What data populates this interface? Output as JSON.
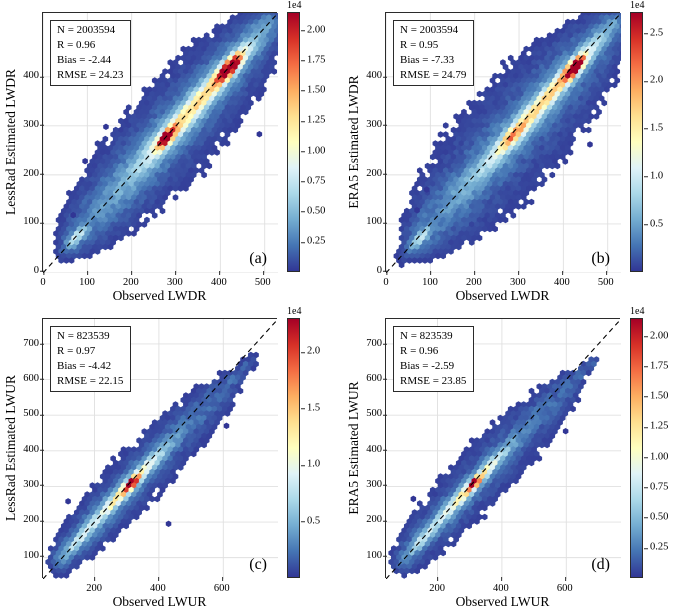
{
  "colormap": [
    "#313695",
    "#4575b4",
    "#74add1",
    "#abd9e9",
    "#e0f3f8",
    "#ffffbf",
    "#fee090",
    "#fdae61",
    "#f46d43",
    "#d73027",
    "#a50026"
  ],
  "chart_data": [
    {
      "id": "a",
      "type": "hexbin",
      "panel_label": "(a)",
      "xlabel": "Observed LWDR",
      "ylabel": "LessRad Estimated LWDR",
      "stats": {
        "n": "N = 2003594",
        "r": "R = 0.96",
        "bias": "Bias = -2.44",
        "rmse": "RMSE = 24.23"
      },
      "xlim": [
        0,
        530
      ],
      "ylim": [
        0,
        530
      ],
      "xticks": [
        0,
        100,
        200,
        300,
        400,
        500
      ],
      "yticks": [
        0,
        100,
        200,
        300,
        400
      ],
      "grid": true,
      "identity_line": true,
      "colorbar": {
        "scale": "1e4",
        "vmax": 2.15,
        "ticks": [
          {
            "v": 0.25,
            "label": "0.25"
          },
          {
            "v": 0.5,
            "label": "0.50"
          },
          {
            "v": 0.75,
            "label": "0.75"
          },
          {
            "v": 1.0,
            "label": "1.00"
          },
          {
            "v": 1.25,
            "label": "1.25"
          },
          {
            "v": 1.5,
            "label": "1.50"
          },
          {
            "v": 1.75,
            "label": "1.75"
          },
          {
            "v": 2.0,
            "label": "2.00"
          }
        ]
      },
      "density_model": {
        "t0": 62,
        "t1": 505,
        "tmid": 290,
        "thalf": 245,
        "smax": 55,
        "amp": 0.075,
        "off0": -3,
        "off1": 0,
        "cut": 0.013,
        "seed": 1,
        "ridges": [
          {
            "t": 300,
            "st": 130,
            "sp": 26,
            "a": 0.16
          },
          {
            "t": 350,
            "st": 80,
            "sp": 13,
            "a": 0.4
          },
          {
            "t": 277,
            "st": 16,
            "sp": 8,
            "a": 0.55
          },
          {
            "t": 276,
            "st": 8,
            "sp": 5,
            "a": 0.45
          },
          {
            "t": 420,
            "st": 20,
            "sp": 9,
            "a": 0.75
          },
          {
            "t": 419,
            "st": 10,
            "sp": 5.5,
            "a": 0.4
          },
          {
            "t": 75,
            "st": 14,
            "sp": 7,
            "a": 0.28
          }
        ]
      },
      "outliers": [
        [
          95,
          228
        ],
        [
          488,
          283
        ],
        [
          142,
          298
        ],
        [
          68,
          118
        ]
      ]
    },
    {
      "id": "b",
      "type": "hexbin",
      "panel_label": "(b)",
      "xlabel": "Observed LWDR",
      "ylabel": "ERA5 Estimated LWDR",
      "stats": {
        "n": "N = 2003594",
        "r": "R = 0.95",
        "bias": "Bias = -7.33",
        "rmse": "RMSE = 24.79"
      },
      "xlim": [
        0,
        530
      ],
      "ylim": [
        0,
        530
      ],
      "xticks": [
        0,
        100,
        200,
        300,
        400,
        500
      ],
      "yticks": [
        0,
        100,
        200,
        300,
        400
      ],
      "grid": true,
      "identity_line": true,
      "colorbar": {
        "scale": "1e4",
        "vmax": 2.72,
        "ticks": [
          {
            "v": 0.5,
            "label": "0.5"
          },
          {
            "v": 1.0,
            "label": "1.0"
          },
          {
            "v": 1.5,
            "label": "1.5"
          },
          {
            "v": 2.0,
            "label": "2.0"
          },
          {
            "v": 2.5,
            "label": "2.5"
          }
        ]
      },
      "density_model": {
        "t0": 60,
        "t1": 505,
        "tmid": 285,
        "thalf": 240,
        "smax": 62,
        "amp": 0.075,
        "off0": -7,
        "off1": 0,
        "cut": 0.013,
        "seed": 2,
        "ridges": [
          {
            "t": 300,
            "st": 130,
            "sp": 24,
            "a": 0.16
          },
          {
            "t": 355,
            "st": 85,
            "sp": 11,
            "a": 0.42
          },
          {
            "t": 280,
            "st": 18,
            "sp": 8,
            "a": 0.3
          },
          {
            "t": 421,
            "st": 16,
            "sp": 8,
            "a": 0.8
          },
          {
            "t": 420,
            "st": 8,
            "sp": 5,
            "a": 0.45
          },
          {
            "t": 74,
            "st": 13,
            "sp": 7,
            "a": 0.26
          }
        ]
      },
      "outliers": [
        [
          92,
          170
        ],
        [
          460,
          262
        ],
        [
          70,
          128
        ]
      ]
    },
    {
      "id": "c",
      "type": "hexbin",
      "panel_label": "(c)",
      "xlabel": "Observed LWUR",
      "ylabel": "LessRad Estimated LWUR",
      "stats": {
        "n": "N = 823539",
        "r": "R = 0.97",
        "bias": "Bias = -4.42",
        "rmse": "RMSE = 22.15"
      },
      "xlim": [
        40,
        770
      ],
      "ylim": [
        40,
        770
      ],
      "xticks": [
        200,
        400,
        600
      ],
      "yticks": [
        100,
        200,
        300,
        400,
        500,
        600,
        700
      ],
      "grid": true,
      "identity_line": true,
      "colorbar": {
        "scale": "1e4",
        "vmax": 2.3,
        "ticks": [
          {
            "v": 0.5,
            "label": "0.5"
          },
          {
            "v": 1.0,
            "label": "1.0"
          },
          {
            "v": 1.5,
            "label": "1.5"
          },
          {
            "v": 2.0,
            "label": "2.0"
          }
        ]
      },
      "density_model": {
        "t0": 95,
        "t1": 655,
        "tmid": 340,
        "thalf": 300,
        "smax": 44,
        "amp": 0.075,
        "off0": -2,
        "off1": -35,
        "cut": 0.013,
        "seed": 3,
        "ridges": [
          {
            "t": 280,
            "st": 110,
            "sp": 20,
            "a": 0.18
          },
          {
            "t": 305,
            "st": 65,
            "sp": 10,
            "a": 0.4
          },
          {
            "t": 311,
            "st": 13,
            "sp": 7,
            "a": 0.55
          },
          {
            "t": 310,
            "st": 7,
            "sp": 4.5,
            "a": 0.45
          },
          {
            "t": 150,
            "st": 30,
            "sp": 9,
            "a": 0.22
          }
        ]
      },
      "outliers": [
        [
          118,
          258
        ],
        [
          610,
          470
        ],
        [
          430,
          195
        ]
      ]
    },
    {
      "id": "d",
      "type": "hexbin",
      "panel_label": "(d)",
      "xlabel": "Observed LWUR",
      "ylabel": "ERA5 Estimated LWUR",
      "stats": {
        "n": "N = 823539",
        "r": "R = 0.96",
        "bias": "Bias = -2.59",
        "rmse": "RMSE = 23.85"
      },
      "xlim": [
        40,
        770
      ],
      "ylim": [
        40,
        770
      ],
      "xticks": [
        200,
        400,
        600
      ],
      "yticks": [
        100,
        200,
        300,
        400,
        500,
        600,
        700
      ],
      "grid": true,
      "identity_line": true,
      "colorbar": {
        "scale": "1e4",
        "vmax": 2.15,
        "ticks": [
          {
            "v": 0.25,
            "label": "0.25"
          },
          {
            "v": 0.5,
            "label": "0.50"
          },
          {
            "v": 0.75,
            "label": "0.75"
          },
          {
            "v": 1.0,
            "label": "1.00"
          },
          {
            "v": 1.25,
            "label": "1.25"
          },
          {
            "v": 1.5,
            "label": "1.50"
          },
          {
            "v": 1.75,
            "label": "1.75"
          },
          {
            "v": 2.0,
            "label": "2.00"
          }
        ]
      },
      "density_model": {
        "t0": 95,
        "t1": 655,
        "tmid": 340,
        "thalf": 300,
        "smax": 46,
        "amp": 0.075,
        "off0": -2,
        "off1": -30,
        "cut": 0.013,
        "seed": 4,
        "ridges": [
          {
            "t": 285,
            "st": 105,
            "sp": 18,
            "a": 0.19
          },
          {
            "t": 305,
            "st": 62,
            "sp": 9,
            "a": 0.38
          },
          {
            "t": 312,
            "st": 11,
            "sp": 6,
            "a": 0.6
          },
          {
            "t": 311,
            "st": 6,
            "sp": 4,
            "a": 0.45
          },
          {
            "t": 150,
            "st": 28,
            "sp": 9,
            "a": 0.2
          }
        ]
      },
      "outliers": [
        [
          125,
          265
        ],
        [
          598,
          455
        ]
      ]
    }
  ]
}
